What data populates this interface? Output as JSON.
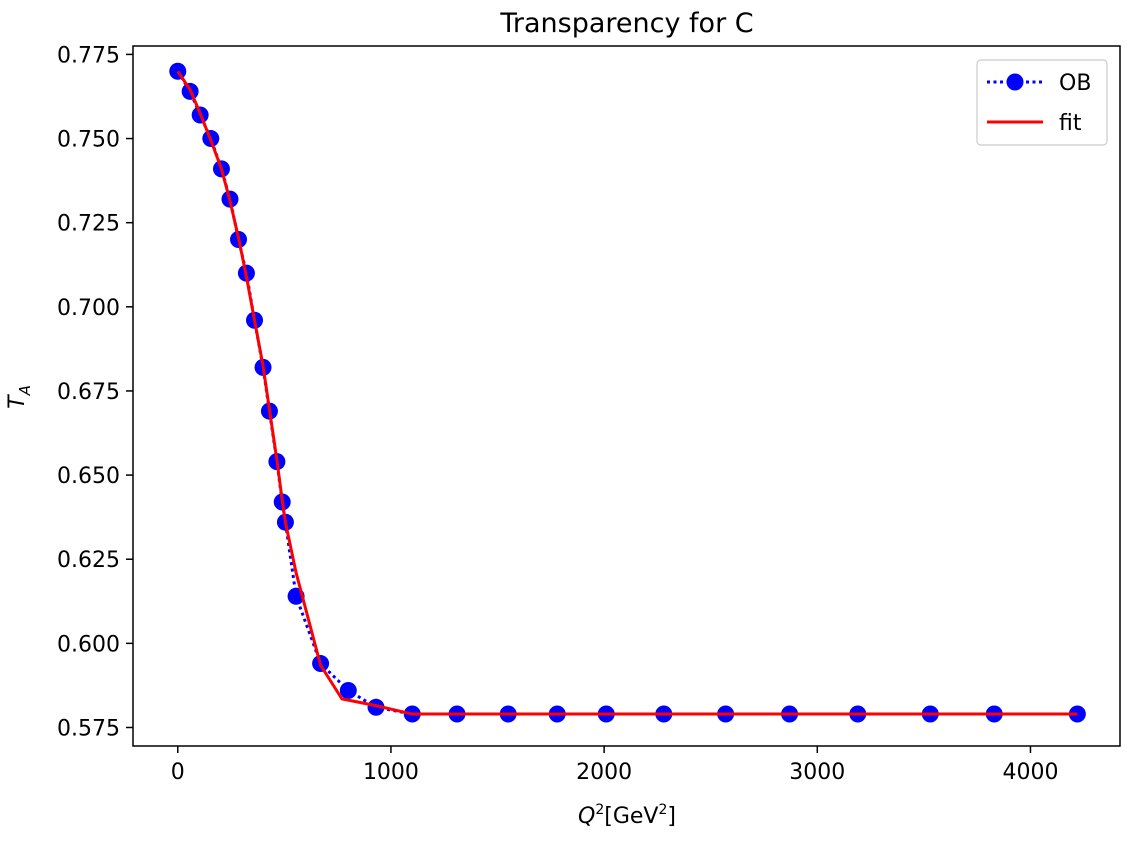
{
  "chart_data": {
    "type": "line",
    "title": "Transparency for C",
    "xlabel": {
      "base": "Q",
      "sup1": "2",
      "mid": "[GeV",
      "sup2": "2",
      "end": "]"
    },
    "ylabel": {
      "base": "T",
      "sub": "A"
    },
    "xlim": [
      -210,
      4420
    ],
    "ylim": [
      0.5695,
      0.7775
    ],
    "x_ticks": [
      {
        "value": 0,
        "label": "0"
      },
      {
        "value": 1000,
        "label": "1000"
      },
      {
        "value": 2000,
        "label": "2000"
      },
      {
        "value": 3000,
        "label": "3000"
      },
      {
        "value": 4000,
        "label": "4000"
      }
    ],
    "y_ticks": [
      {
        "value": 0.575,
        "label": "0.575"
      },
      {
        "value": 0.6,
        "label": "0.600"
      },
      {
        "value": 0.625,
        "label": "0.625"
      },
      {
        "value": 0.65,
        "label": "0.650"
      },
      {
        "value": 0.675,
        "label": "0.675"
      },
      {
        "value": 0.7,
        "label": "0.700"
      },
      {
        "value": 0.725,
        "label": "0.725"
      },
      {
        "value": 0.75,
        "label": "0.750"
      },
      {
        "value": 0.775,
        "label": "0.775"
      }
    ],
    "grid": false,
    "legend_position": "upper right",
    "series": [
      {
        "name": "OB",
        "color": "#0000ff",
        "style": "dotted line with circle markers",
        "x": [
          0,
          58,
          105,
          155,
          205,
          245,
          285,
          322,
          360,
          400,
          430,
          465,
          490,
          505,
          555,
          670,
          800,
          930,
          1100,
          1310,
          1550,
          1780,
          2010,
          2280,
          2570,
          2870,
          3190,
          3530,
          3830,
          4220
        ],
        "y": [
          0.77,
          0.764,
          0.757,
          0.75,
          0.741,
          0.732,
          0.72,
          0.71,
          0.696,
          0.682,
          0.669,
          0.654,
          0.642,
          0.636,
          0.614,
          0.594,
          0.586,
          0.581,
          0.579,
          0.579,
          0.579,
          0.579,
          0.579,
          0.579,
          0.579,
          0.579,
          0.579,
          0.579,
          0.579,
          0.579
        ]
      },
      {
        "name": "fit",
        "color": "#ff0000",
        "style": "solid line",
        "x": [
          0,
          58,
          105,
          155,
          205,
          245,
          285,
          322,
          360,
          400,
          430,
          465,
          490,
          505,
          555,
          670,
          770,
          930,
          1100,
          1310,
          1550,
          1780,
          2010,
          2280,
          2570,
          2870,
          3190,
          3530,
          3830,
          4220
        ],
        "y": [
          0.77,
          0.7645,
          0.7575,
          0.7495,
          0.741,
          0.7315,
          0.7205,
          0.709,
          0.696,
          0.6825,
          0.6695,
          0.6545,
          0.6425,
          0.636,
          0.621,
          0.5935,
          0.5835,
          0.5815,
          0.579,
          0.579,
          0.579,
          0.579,
          0.579,
          0.579,
          0.579,
          0.579,
          0.579,
          0.579,
          0.579,
          0.579
        ]
      }
    ]
  }
}
